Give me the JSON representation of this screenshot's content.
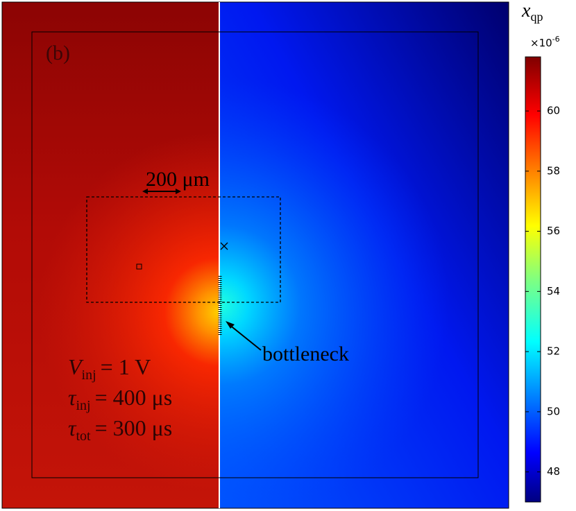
{
  "chart_data": {
    "type": "heatmap",
    "panel_label": "(b)",
    "scale_bar": "200 μm",
    "annotation": "bottleneck",
    "parameters": [
      {
        "symbol": "V",
        "subscript": "inj",
        "value": "= 1 V"
      },
      {
        "symbol": "τ",
        "subscript": "inj",
        "value": "= 400 μs"
      },
      {
        "symbol": "τ",
        "subscript": "tot",
        "value": "= 300 μs"
      }
    ],
    "colorbar": {
      "symbol": "x",
      "subscript": "qp",
      "multiplier": "×10",
      "exponent": "-6",
      "ylim": [
        47,
        61.8
      ],
      "yticks": [
        48,
        50,
        52,
        54,
        56,
        58,
        60
      ]
    }
  }
}
